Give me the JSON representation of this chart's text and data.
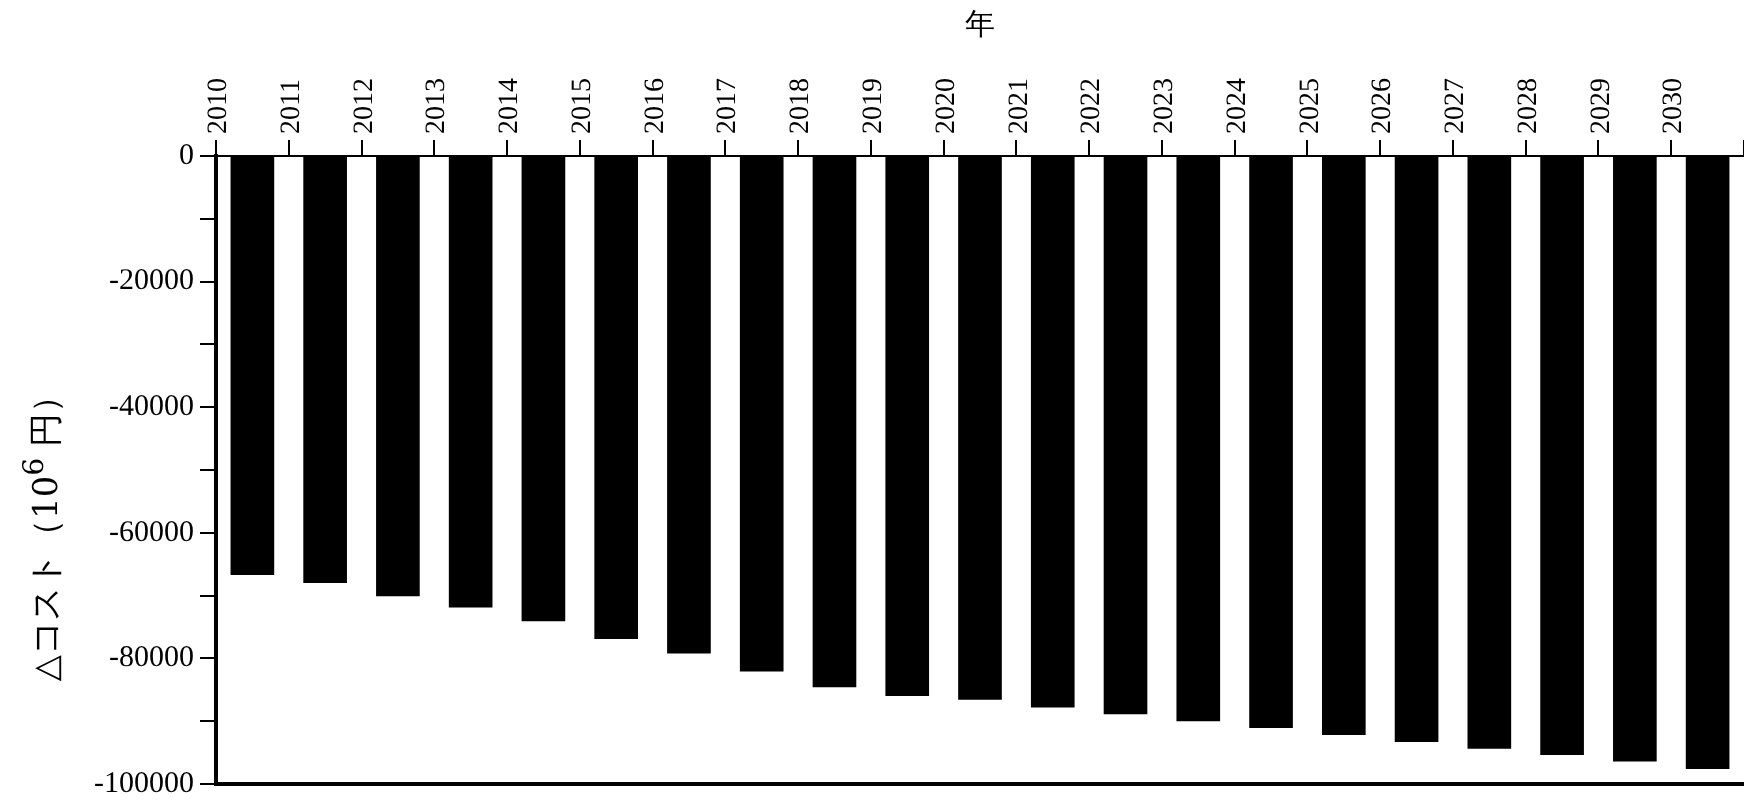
{
  "chart_data": {
    "type": "bar",
    "xlabel": "年",
    "ylabel": "△コスト（10$^{6}$ 円）",
    "categories": [
      "2010",
      "2011",
      "2012",
      "2013",
      "2014",
      "2015",
      "2016",
      "2017",
      "2018",
      "2019",
      "2020",
      "2021",
      "2022",
      "2023",
      "2024",
      "2025",
      "2026",
      "2027",
      "2028",
      "2029",
      "2030"
    ],
    "values": [
      -66700,
      -68000,
      -70100,
      -71900,
      -74100,
      -76900,
      -79200,
      -82100,
      -84600,
      -86000,
      -86600,
      -87800,
      -88900,
      -90000,
      -91100,
      -92200,
      -93300,
      -94400,
      -95400,
      -96400,
      -97600
    ],
    "color": "#000000",
    "ylim": [
      -100000,
      0
    ],
    "yticks": [
      -100000,
      {
        "value": -90000,
        "label": null
      },
      -80000,
      {
        "value": -70000,
        "label": null
      },
      -60000,
      {
        "value": -50000,
        "label": null
      },
      -40000,
      {
        "value": -30000,
        "label": null
      },
      -20000,
      {
        "value": -10000,
        "label": null
      },
      0
    ],
    "grid": false,
    "legend": false
  }
}
